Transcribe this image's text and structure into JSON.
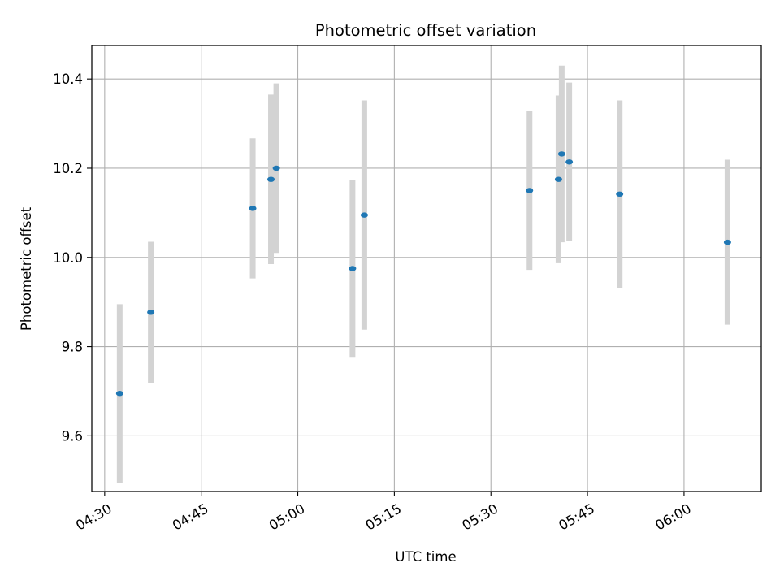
{
  "chart_data": {
    "type": "scatter",
    "title": "Photometric offset variation",
    "xlabel": "UTC time",
    "ylabel": "Photometric offset",
    "x_axis": {
      "type": "time",
      "min": "04:28",
      "max": "06:12"
    },
    "xticks": [
      "04:30",
      "04:45",
      "05:00",
      "05:15",
      "05:30",
      "05:45",
      "06:00"
    ],
    "ylim": [
      9.475,
      10.475
    ],
    "yticks": [
      9.6,
      9.8,
      10.0,
      10.2,
      10.4
    ],
    "ytick_labels": [
      "9.6",
      "9.8",
      "10.0",
      "10.2",
      "10.4"
    ],
    "grid": true,
    "colors": {
      "point": "#1f77b4",
      "errorbar": "#d3d3d3",
      "grid": "#b0b0b0"
    },
    "series": [
      {
        "points": [
          {
            "x": "04:32:20",
            "y": 9.695,
            "yerr": 0.2
          },
          {
            "x": "04:37:10",
            "y": 9.877,
            "yerr": 0.158
          },
          {
            "x": "04:53:00",
            "y": 10.11,
            "yerr": 0.157
          },
          {
            "x": "04:55:50",
            "y": 10.175,
            "yerr": 0.19
          },
          {
            "x": "04:56:40",
            "y": 10.2,
            "yerr": 0.19
          },
          {
            "x": "05:08:30",
            "y": 9.975,
            "yerr": 0.198
          },
          {
            "x": "05:10:20",
            "y": 10.095,
            "yerr": 0.257
          },
          {
            "x": "05:36:00",
            "y": 10.15,
            "yerr": 0.178
          },
          {
            "x": "05:40:30",
            "y": 10.175,
            "yerr": 0.188
          },
          {
            "x": "05:41:00",
            "y": 10.232,
            "yerr": 0.198
          },
          {
            "x": "05:42:10",
            "y": 10.214,
            "yerr": 0.178
          },
          {
            "x": "05:50:00",
            "y": 10.142,
            "yerr": 0.21
          },
          {
            "x": "06:06:45",
            "y": 10.034,
            "yerr": 0.185
          }
        ]
      }
    ]
  }
}
